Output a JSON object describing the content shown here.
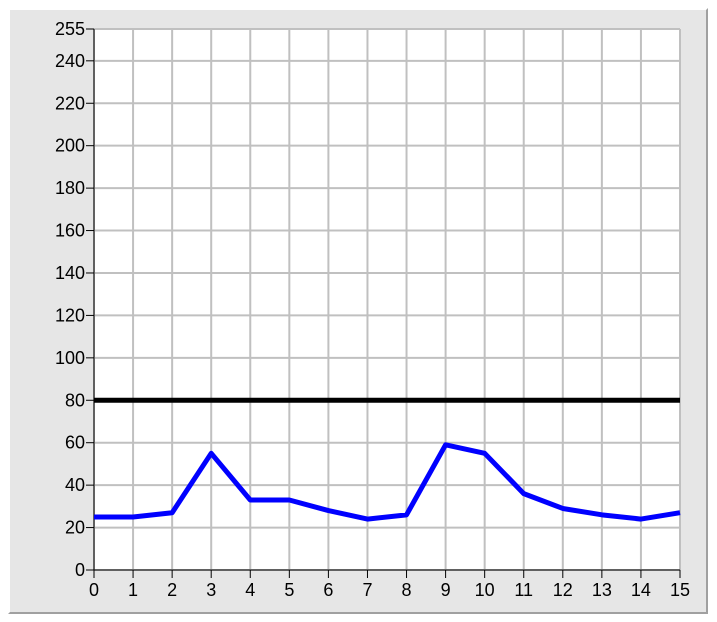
{
  "chart_data": {
    "type": "line",
    "title": "",
    "xlabel": "",
    "ylabel": "",
    "xlim": [
      0,
      15
    ],
    "ylim": [
      0,
      255
    ],
    "grid": true,
    "x_ticks": [
      "0",
      "1",
      "2",
      "3",
      "4",
      "5",
      "6",
      "7",
      "8",
      "9",
      "10",
      "11",
      "12",
      "13",
      "14",
      "15"
    ],
    "y_ticks": [
      "0",
      "20",
      "40",
      "60",
      "80",
      "100",
      "120",
      "140",
      "160",
      "180",
      "200",
      "220",
      "240",
      "255"
    ],
    "series": [
      {
        "color": "#0000ff",
        "x": [
          0,
          1,
          2,
          3,
          4,
          5,
          6,
          7,
          8,
          9,
          10,
          11,
          12,
          13,
          14,
          15
        ],
        "values": [
          25,
          25,
          27,
          55,
          33,
          33,
          28,
          24,
          26,
          59,
          55,
          36,
          29,
          26,
          24,
          27
        ]
      },
      {
        "color": "#000000",
        "x": [
          0,
          15
        ],
        "values": [
          80,
          80
        ]
      }
    ]
  }
}
